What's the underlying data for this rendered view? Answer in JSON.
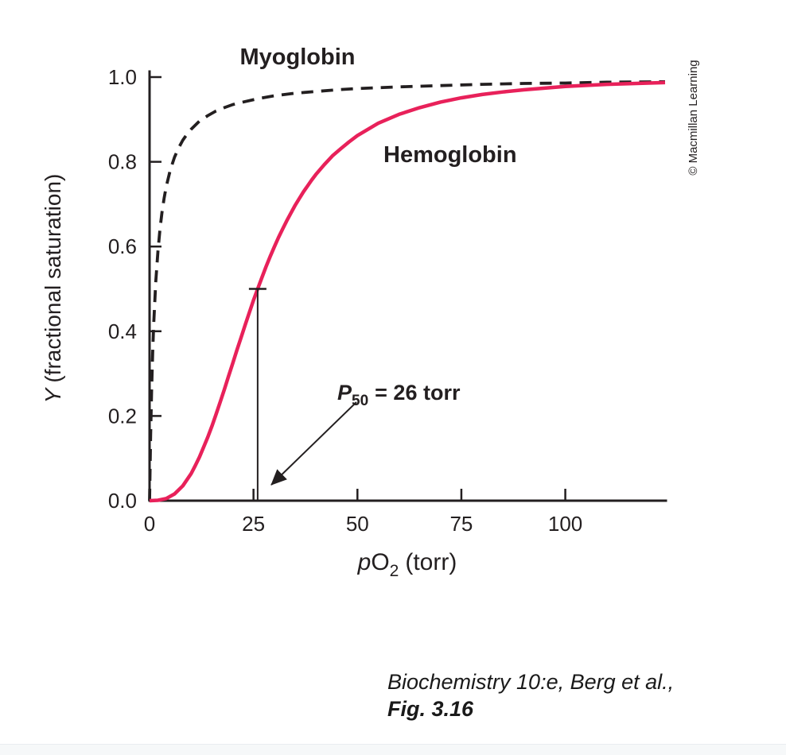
{
  "figure": {
    "myoglobin_label": "Myoglobin",
    "hemoglobin_label": "Hemoglobin",
    "p50": {
      "symbol": "P",
      "sub": "50",
      "rest": "= 26 torr"
    },
    "y_axis": {
      "symbol": "Y",
      "rest": "(fractional saturation)"
    },
    "x_axis": {
      "symbol": "p",
      "element": "O",
      "sub": "2",
      "rest": "(torr)"
    },
    "watermark": "© Macmillan Learning",
    "citation": {
      "line1": "Biochemistry 10:e, Berg et al.,",
      "line2": "Fig. 3.16"
    },
    "colors": {
      "myoglobin": "#231f20",
      "hemoglobin": "#e8215a",
      "axis": "#231f20"
    }
  },
  "chart_data": {
    "type": "line",
    "title": "",
    "xlabel": "pO2 (torr)",
    "ylabel": "Y (fractional saturation)",
    "xlim": [
      0,
      124
    ],
    "ylim": [
      0,
      1.0
    ],
    "x_ticks": [
      0,
      25,
      50,
      75,
      100
    ],
    "y_ticks": [
      0.0,
      0.2,
      0.4,
      0.6,
      0.8,
      1.0
    ],
    "grid": false,
    "legend": "inline-labels",
    "p50_annotation": {
      "x": 26,
      "y": 0.5,
      "text": "P50 = 26 torr"
    },
    "series": [
      {
        "name": "Myoglobin",
        "line_style": "dashed",
        "color": "#231f20",
        "points": [
          [
            0,
            0
          ],
          [
            0.25,
            0.152
          ],
          [
            0.5,
            0.263
          ],
          [
            0.75,
            0.349
          ],
          [
            1,
            0.417
          ],
          [
            1.5,
            0.517
          ],
          [
            2,
            0.588
          ],
          [
            2.5,
            0.641
          ],
          [
            3,
            0.682
          ],
          [
            3.5,
            0.714
          ],
          [
            4,
            0.741
          ],
          [
            5,
            0.781
          ],
          [
            6,
            0.811
          ],
          [
            7,
            0.833
          ],
          [
            8,
            0.851
          ],
          [
            9,
            0.865
          ],
          [
            10,
            0.877
          ],
          [
            12,
            0.896
          ],
          [
            14,
            0.909
          ],
          [
            16,
            0.92
          ],
          [
            18,
            0.928
          ],
          [
            20,
            0.935
          ],
          [
            22,
            0.94
          ],
          [
            26,
            0.949
          ],
          [
            30,
            0.956
          ],
          [
            35,
            0.962
          ],
          [
            40,
            0.966
          ],
          [
            45,
            0.97
          ],
          [
            50,
            0.973
          ],
          [
            60,
            0.977
          ],
          [
            70,
            0.98
          ],
          [
            80,
            0.983
          ],
          [
            90,
            0.985
          ],
          [
            100,
            0.986
          ],
          [
            110,
            0.988
          ],
          [
            124,
            0.989
          ]
        ]
      },
      {
        "name": "Hemoglobin",
        "line_style": "solid",
        "color": "#e8215a",
        "points": [
          [
            0,
            0
          ],
          [
            2,
            0.001
          ],
          [
            4,
            0.005
          ],
          [
            6,
            0.016
          ],
          [
            8,
            0.035
          ],
          [
            10,
            0.064
          ],
          [
            11,
            0.083
          ],
          [
            12,
            0.103
          ],
          [
            13,
            0.126
          ],
          [
            14,
            0.15
          ],
          [
            15,
            0.176
          ],
          [
            16,
            0.204
          ],
          [
            17,
            0.233
          ],
          [
            18,
            0.263
          ],
          [
            19,
            0.294
          ],
          [
            20,
            0.324
          ],
          [
            21,
            0.355
          ],
          [
            22,
            0.385
          ],
          [
            23,
            0.415
          ],
          [
            24,
            0.444
          ],
          [
            25,
            0.473
          ],
          [
            26,
            0.5
          ],
          [
            27,
            0.526
          ],
          [
            28,
            0.552
          ],
          [
            29,
            0.576
          ],
          [
            30,
            0.599
          ],
          [
            31,
            0.621
          ],
          [
            32,
            0.641
          ],
          [
            33,
            0.661
          ],
          [
            34,
            0.679
          ],
          [
            35,
            0.697
          ],
          [
            36,
            0.713
          ],
          [
            37,
            0.729
          ],
          [
            38,
            0.743
          ],
          [
            39,
            0.757
          ],
          [
            40,
            0.77
          ],
          [
            42,
            0.793
          ],
          [
            44,
            0.814
          ],
          [
            46,
            0.831
          ],
          [
            48,
            0.847
          ],
          [
            50,
            0.862
          ],
          [
            55,
            0.891
          ],
          [
            60,
            0.912
          ],
          [
            65,
            0.928
          ],
          [
            70,
            0.941
          ],
          [
            75,
            0.951
          ],
          [
            80,
            0.959
          ],
          [
            85,
            0.965
          ],
          [
            90,
            0.97
          ],
          [
            95,
            0.974
          ],
          [
            100,
            0.978
          ],
          [
            110,
            0.983
          ],
          [
            124,
            0.987
          ]
        ]
      }
    ]
  }
}
